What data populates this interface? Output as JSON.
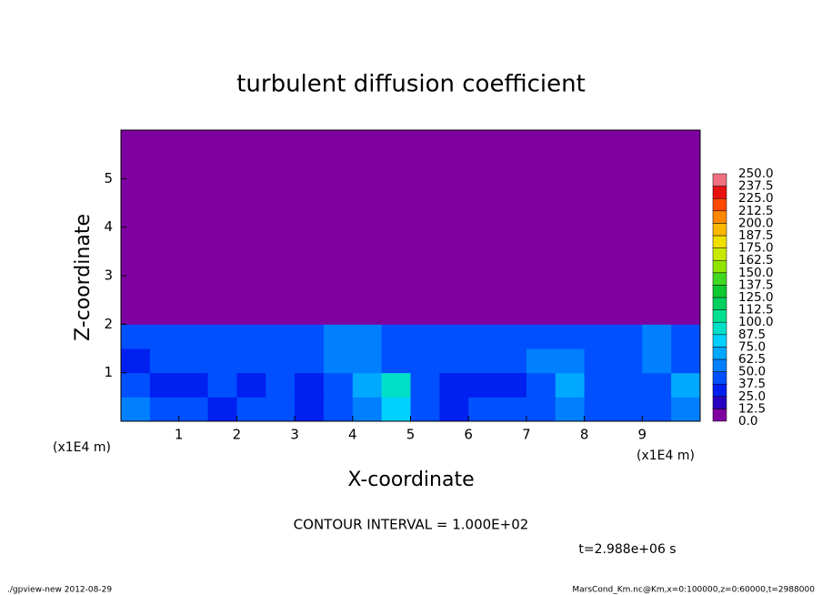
{
  "chart_data": {
    "type": "heatmap",
    "title": "turbulent diffusion coefficient",
    "x_label": "X-coordinate",
    "y_label": "Z-coordinate",
    "x_unit": "(x1E4 m)",
    "xlim": [
      0,
      10
    ],
    "ylim": [
      0,
      6
    ],
    "xticks": [
      1,
      2,
      3,
      4,
      5,
      6,
      7,
      8,
      9
    ],
    "yticks": [
      1,
      2,
      3,
      4,
      5
    ],
    "x_edges": [
      0,
      0.5,
      1,
      1.5,
      2,
      2.5,
      3,
      3.5,
      4,
      4.5,
      5,
      5.5,
      6,
      6.5,
      7,
      7.5,
      8,
      8.5,
      9,
      9.5,
      10
    ],
    "y_edges": [
      0,
      0.5,
      1,
      1.5,
      2,
      6
    ],
    "values": [
      [
        60,
        45,
        40,
        35,
        40,
        45,
        35,
        40,
        55,
        80,
        40,
        35,
        40,
        40,
        45,
        60,
        45,
        40,
        40,
        55
      ],
      [
        40,
        35,
        35,
        40,
        35,
        40,
        35,
        40,
        65,
        90,
        40,
        35,
        30,
        35,
        40,
        65,
        45,
        40,
        40,
        70
      ],
      [
        35,
        40,
        40,
        45,
        40,
        45,
        45,
        55,
        50,
        45,
        40,
        40,
        40,
        40,
        55,
        50,
        40,
        45,
        60,
        45
      ],
      [
        45,
        40,
        45,
        40,
        45,
        40,
        45,
        50,
        55,
        45,
        45,
        40,
        45,
        40,
        45,
        45,
        40,
        45,
        50,
        45
      ],
      [
        0,
        0,
        0,
        0,
        0,
        0,
        0,
        0,
        0,
        0,
        0,
        0,
        0,
        0,
        0,
        0,
        0,
        0,
        0,
        0
      ]
    ],
    "levels": [
      {
        "value": 0,
        "label": "0.0"
      },
      {
        "value": 12.5,
        "label": "12.5"
      },
      {
        "value": 25,
        "label": "25.0"
      },
      {
        "value": 37.5,
        "label": "37.5"
      },
      {
        "value": 50,
        "label": "50.0"
      },
      {
        "value": 62.5,
        "label": "62.5"
      },
      {
        "value": 75,
        "label": "75.0"
      },
      {
        "value": 87.5,
        "label": "87.5"
      },
      {
        "value": 100,
        "label": "100.0"
      },
      {
        "value": 112.5,
        "label": "112.5"
      },
      {
        "value": 125,
        "label": "125.0"
      },
      {
        "value": 137.5,
        "label": "137.5"
      },
      {
        "value": 150,
        "label": "150.0"
      },
      {
        "value": 162.5,
        "label": "162.5"
      },
      {
        "value": 175,
        "label": "175.0"
      },
      {
        "value": 187.5,
        "label": "187.5"
      },
      {
        "value": 200,
        "label": "200.0"
      },
      {
        "value": 212.5,
        "label": "212.5"
      },
      {
        "value": 225,
        "label": "225.0"
      },
      {
        "value": 237.5,
        "label": "237.5"
      },
      {
        "value": 250,
        "label": "250.0"
      }
    ],
    "colors": [
      "#7f00a0",
      "#2800c0",
      "#0020f0",
      "#0050ff",
      "#0080ff",
      "#00a8ff",
      "#00d0ff",
      "#00e0c8",
      "#00e090",
      "#00d060",
      "#10c830",
      "#40d820",
      "#90e400",
      "#c8e800",
      "#f0e000",
      "#f8b800",
      "#ff8800",
      "#ff4800",
      "#e81010",
      "#f07080"
    ],
    "contour_interval": "CONTOUR INTERVAL = 1.000E+02",
    "time": "t=2.988e+06 s",
    "footer_left": "./gpview-new  2012-08-29",
    "footer_right": "MarsCond_Km.nc@Km,x=0:100000,z=0:60000,t=2988000"
  }
}
